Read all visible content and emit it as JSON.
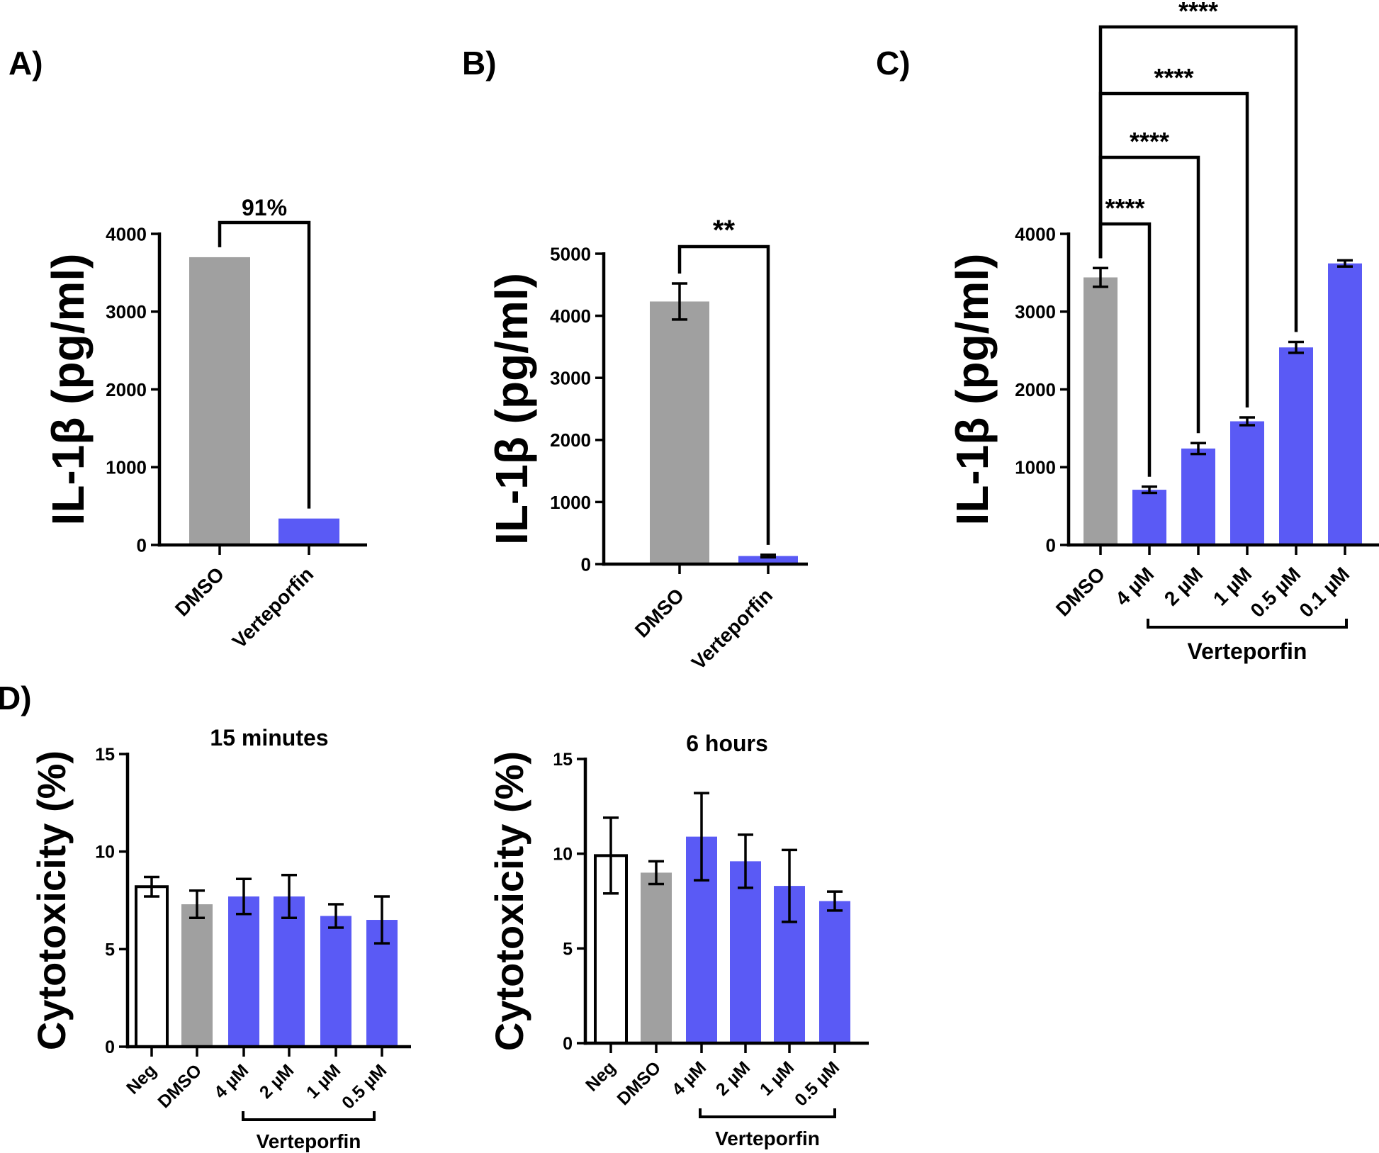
{
  "figure": {
    "panel_labels": [
      "A)",
      "B)",
      "C)",
      "D)"
    ],
    "colors": {
      "dmso": "#a0a0a0",
      "verteporfin": "#5a5af5",
      "neg": "#ffffff",
      "ink": "#000000"
    }
  },
  "chart_data": [
    {
      "id": "A",
      "type": "bar",
      "ylabel": "IL-1β (pg/ml)",
      "categories": [
        "DMSO",
        "Verteporfin"
      ],
      "values": [
        3700,
        340
      ],
      "errors": [
        null,
        null
      ],
      "ylim": [
        0,
        4000
      ],
      "yticks": [
        0,
        1000,
        2000,
        3000,
        4000
      ],
      "annotations": [
        {
          "from": "DMSO",
          "to": "Verteporfin",
          "text": "91%"
        }
      ]
    },
    {
      "id": "B",
      "type": "bar",
      "ylabel": "IL-1β (pg/ml)",
      "categories": [
        "DMSO",
        "Verteporfin"
      ],
      "values": [
        4230,
        130
      ],
      "errors": [
        290,
        20
      ],
      "ylim": [
        0,
        5000
      ],
      "yticks": [
        0,
        1000,
        2000,
        3000,
        4000,
        5000
      ],
      "annotations": [
        {
          "from": "DMSO",
          "to": "Verteporfin",
          "text": "**"
        }
      ]
    },
    {
      "id": "C",
      "type": "bar",
      "ylabel": "IL-1β (pg/ml)",
      "categories": [
        "DMSO",
        "4 µM",
        "2 µM",
        "1 µM",
        "0.5 µM",
        "0.1 µM"
      ],
      "values": [
        3440,
        710,
        1240,
        1590,
        2540,
        3620
      ],
      "errors": [
        120,
        40,
        70,
        50,
        70,
        40
      ],
      "ylim": [
        0,
        4000
      ],
      "yticks": [
        0,
        1000,
        2000,
        3000,
        4000
      ],
      "group_label": "Verteporfin",
      "annotations": [
        {
          "from": "DMSO",
          "to": "4 µM",
          "text": "****"
        },
        {
          "from": "DMSO",
          "to": "2 µM",
          "text": "****"
        },
        {
          "from": "DMSO",
          "to": "1 µM",
          "text": "****"
        },
        {
          "from": "DMSO",
          "to": "0.5 µM",
          "text": "****"
        }
      ]
    },
    {
      "id": "D1",
      "type": "bar",
      "title": "15 minutes",
      "ylabel": "Cytotoxicity (%)",
      "categories": [
        "Neg",
        "DMSO",
        "4 µM",
        "2 µM",
        "1 µM",
        "0.5 µM"
      ],
      "values": [
        8.2,
        7.3,
        7.7,
        7.7,
        6.7,
        6.5
      ],
      "errors": [
        0.5,
        0.7,
        0.9,
        1.1,
        0.6,
        1.2
      ],
      "ylim": [
        0,
        15
      ],
      "yticks": [
        0,
        5,
        10,
        15
      ],
      "group_label": "Verteporfin"
    },
    {
      "id": "D2",
      "type": "bar",
      "title": "6 hours",
      "ylabel": "Cytotoxicity (%)",
      "categories": [
        "Neg",
        "DMSO",
        "4 µM",
        "2 µM",
        "1 µM",
        "0.5 µM"
      ],
      "values": [
        9.9,
        9.0,
        10.9,
        9.6,
        8.3,
        7.5
      ],
      "errors": [
        2.0,
        0.6,
        2.3,
        1.4,
        1.9,
        0.5
      ],
      "ylim": [
        0,
        15
      ],
      "yticks": [
        0,
        5,
        10,
        15
      ],
      "group_label": "Verteporfin"
    }
  ]
}
